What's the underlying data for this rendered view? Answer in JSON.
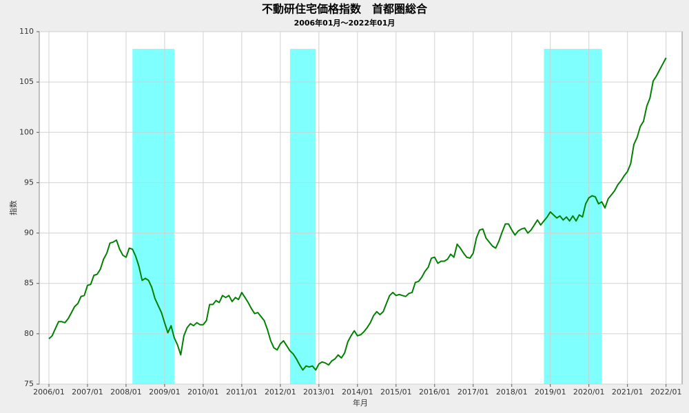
{
  "chart_data": {
    "type": "line",
    "title": "不動研住宅価格指数　首都圏総合",
    "subtitle": "2006年01月～2022年01月",
    "x_label": "年月",
    "y_label": "指数",
    "x": [
      "2006/01",
      "2006/02",
      "2006/03",
      "2006/04",
      "2006/05",
      "2006/06",
      "2006/07",
      "2006/08",
      "2006/09",
      "2006/10",
      "2006/11",
      "2006/12",
      "2007/01",
      "2007/02",
      "2007/03",
      "2007/04",
      "2007/05",
      "2007/06",
      "2007/07",
      "2007/08",
      "2007/09",
      "2007/10",
      "2007/11",
      "2007/12",
      "2008/01",
      "2008/02",
      "2008/03",
      "2008/04",
      "2008/05",
      "2008/06",
      "2008/07",
      "2008/08",
      "2008/09",
      "2008/10",
      "2008/11",
      "2008/12",
      "2009/01",
      "2009/02",
      "2009/03",
      "2009/04",
      "2009/05",
      "2009/06",
      "2009/07",
      "2009/08",
      "2009/09",
      "2009/10",
      "2009/11",
      "2009/12",
      "2010/01",
      "2010/02",
      "2010/03",
      "2010/04",
      "2010/05",
      "2010/06",
      "2010/07",
      "2010/08",
      "2010/09",
      "2010/10",
      "2010/11",
      "2010/12",
      "2011/01",
      "2011/02",
      "2011/03",
      "2011/04",
      "2011/05",
      "2011/06",
      "2011/07",
      "2011/08",
      "2011/09",
      "2011/10",
      "2011/11",
      "2011/12",
      "2012/01",
      "2012/02",
      "2012/03",
      "2012/04",
      "2012/05",
      "2012/06",
      "2012/07",
      "2012/08",
      "2012/09",
      "2012/10",
      "2012/11",
      "2012/12",
      "2013/01",
      "2013/02",
      "2013/03",
      "2013/04",
      "2013/05",
      "2013/06",
      "2013/07",
      "2013/08",
      "2013/09",
      "2013/10",
      "2013/11",
      "2013/12",
      "2014/01",
      "2014/02",
      "2014/03",
      "2014/04",
      "2014/05",
      "2014/06",
      "2014/07",
      "2014/08",
      "2014/09",
      "2014/10",
      "2014/11",
      "2014/12",
      "2015/01",
      "2015/02",
      "2015/03",
      "2015/04",
      "2015/05",
      "2015/06",
      "2015/07",
      "2015/08",
      "2015/09",
      "2015/10",
      "2015/11",
      "2015/12",
      "2016/01",
      "2016/02",
      "2016/03",
      "2016/04",
      "2016/05",
      "2016/06",
      "2016/07",
      "2016/08",
      "2016/09",
      "2016/10",
      "2016/11",
      "2016/12",
      "2017/01",
      "2017/02",
      "2017/03",
      "2017/04",
      "2017/05",
      "2017/06",
      "2017/07",
      "2017/08",
      "2017/09",
      "2017/10",
      "2017/11",
      "2017/12",
      "2018/01",
      "2018/02",
      "2018/03",
      "2018/04",
      "2018/05",
      "2018/06",
      "2018/07",
      "2018/08",
      "2018/09",
      "2018/10",
      "2018/11",
      "2018/12",
      "2019/01",
      "2019/02",
      "2019/03",
      "2019/04",
      "2019/05",
      "2019/06",
      "2019/07",
      "2019/08",
      "2019/09",
      "2019/10",
      "2019/11",
      "2019/12",
      "2020/01",
      "2020/02",
      "2020/03",
      "2020/04",
      "2020/05",
      "2020/06",
      "2020/07",
      "2020/08",
      "2020/09",
      "2020/10",
      "2020/11",
      "2020/12",
      "2021/01",
      "2021/02",
      "2021/03",
      "2021/04",
      "2021/05",
      "2021/06",
      "2021/07",
      "2021/08",
      "2021/09",
      "2021/10",
      "2021/11",
      "2021/12",
      "2022/01"
    ],
    "series": [
      {
        "color": "#008000",
        "values": [
          79.5,
          79.8,
          80.5,
          81.2,
          81.2,
          81.1,
          81.5,
          82.1,
          82.7,
          83.0,
          83.7,
          83.8,
          84.8,
          84.9,
          85.8,
          85.9,
          86.4,
          87.4,
          88.0,
          89.0,
          89.1,
          89.3,
          88.4,
          87.8,
          87.6,
          88.5,
          88.4,
          87.7,
          86.7,
          85.3,
          85.5,
          85.3,
          84.6,
          83.5,
          82.8,
          82.1,
          81.1,
          80.1,
          80.8,
          79.6,
          78.9,
          77.9,
          79.8,
          80.6,
          81.0,
          80.8,
          81.1,
          80.9,
          80.9,
          81.3,
          82.9,
          82.9,
          83.3,
          83.1,
          83.8,
          83.6,
          83.8,
          83.2,
          83.6,
          83.4,
          84.1,
          83.6,
          83.1,
          82.5,
          82.0,
          82.1,
          81.7,
          81.3,
          80.4,
          79.3,
          78.6,
          78.4,
          79.0,
          79.3,
          78.8,
          78.3,
          78.0,
          77.5,
          76.9,
          76.4,
          76.8,
          76.7,
          76.8,
          76.4,
          77.0,
          77.2,
          77.1,
          76.9,
          77.3,
          77.5,
          77.9,
          77.6,
          78.1,
          79.2,
          79.8,
          80.3,
          79.8,
          79.9,
          80.2,
          80.6,
          81.1,
          81.8,
          82.2,
          81.9,
          82.2,
          83.0,
          83.8,
          84.1,
          83.8,
          83.9,
          83.8,
          83.7,
          84.0,
          84.1,
          85.1,
          85.2,
          85.6,
          86.2,
          86.6,
          87.5,
          87.6,
          87.0,
          87.2,
          87.2,
          87.4,
          87.9,
          87.6,
          88.9,
          88.5,
          88.0,
          87.6,
          87.5,
          88.0,
          89.5,
          90.3,
          90.4,
          89.5,
          89.1,
          88.7,
          88.5,
          89.2,
          90.1,
          90.9,
          90.9,
          90.3,
          89.8,
          90.2,
          90.4,
          90.5,
          90.0,
          90.3,
          90.8,
          91.3,
          90.8,
          91.2,
          91.6,
          92.1,
          91.8,
          91.5,
          91.7,
          91.3,
          91.6,
          91.2,
          91.7,
          91.2,
          91.8,
          91.6,
          92.9,
          93.5,
          93.7,
          93.6,
          92.9,
          93.1,
          92.5,
          93.4,
          93.8,
          94.2,
          94.8,
          95.2,
          95.7,
          96.1,
          96.9,
          98.8,
          99.5,
          100.6,
          101.1,
          102.6,
          103.4,
          105.1,
          105.6,
          106.2,
          106.8,
          107.4
        ]
      }
    ],
    "shaded_periods": [
      [
        "2008/03",
        "2009/04"
      ],
      [
        "2012/04",
        "2012/12"
      ],
      [
        "2018/11",
        "2020/05"
      ]
    ],
    "shade_color": "#80ffff",
    "xlim": [
      "2005/10",
      "2022/06"
    ],
    "xticks": [
      "2006/01",
      "2007/01",
      "2008/01",
      "2009/01",
      "2010/01",
      "2011/01",
      "2012/01",
      "2013/01",
      "2014/01",
      "2015/01",
      "2016/01",
      "2017/01",
      "2018/01",
      "2019/01",
      "2020/01",
      "2021/01",
      "2022/01"
    ],
    "ylim": [
      75,
      110
    ],
    "yticks": [
      75,
      80,
      85,
      90,
      95,
      100,
      105,
      110
    ],
    "grid": true
  }
}
